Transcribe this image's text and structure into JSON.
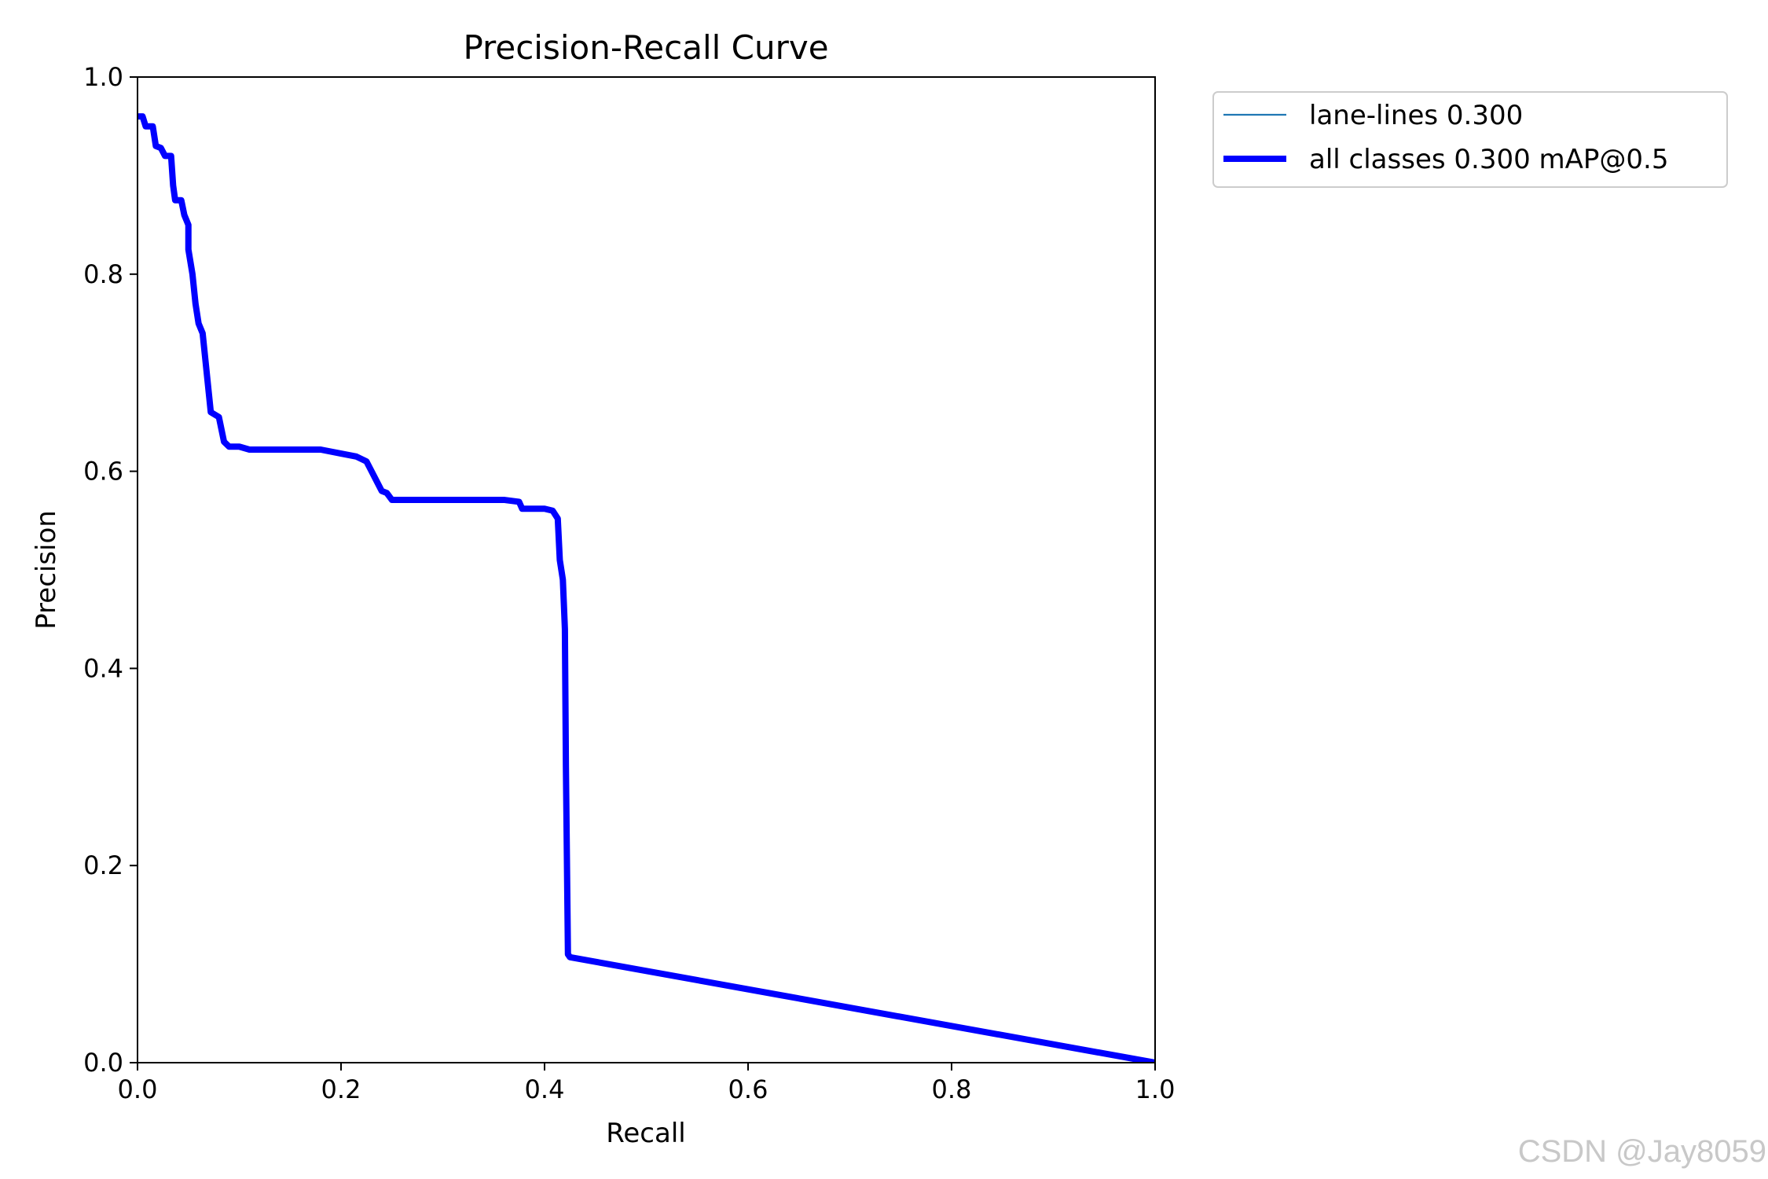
{
  "watermark": "CSDN @Jay8059",
  "chart_data": {
    "type": "line",
    "title": "Precision-Recall Curve",
    "xlabel": "Recall",
    "ylabel": "Precision",
    "xlim": [
      0,
      1
    ],
    "ylim": [
      0,
      1
    ],
    "xticks": [
      "0.0",
      "0.2",
      "0.4",
      "0.6",
      "0.8",
      "1.0"
    ],
    "yticks": [
      "0.0",
      "0.2",
      "0.4",
      "0.6",
      "0.8",
      "1.0"
    ],
    "grid": false,
    "legend_position": "outside-top-right",
    "series": [
      {
        "name": "lane-lines 0.300",
        "color": "#1f77b4",
        "line_style": "thin",
        "points": [
          [
            0.0,
            0.96
          ],
          [
            0.005,
            0.96
          ],
          [
            0.008,
            0.95
          ],
          [
            0.015,
            0.95
          ],
          [
            0.018,
            0.93
          ],
          [
            0.023,
            0.928
          ],
          [
            0.027,
            0.92
          ],
          [
            0.033,
            0.92
          ],
          [
            0.035,
            0.89
          ],
          [
            0.037,
            0.875
          ],
          [
            0.043,
            0.875
          ],
          [
            0.046,
            0.86
          ],
          [
            0.05,
            0.85
          ],
          [
            0.05,
            0.825
          ],
          [
            0.054,
            0.8
          ],
          [
            0.057,
            0.77
          ],
          [
            0.06,
            0.75
          ],
          [
            0.064,
            0.74
          ],
          [
            0.068,
            0.7
          ],
          [
            0.07,
            0.68
          ],
          [
            0.072,
            0.66
          ],
          [
            0.08,
            0.655
          ],
          [
            0.085,
            0.63
          ],
          [
            0.09,
            0.625
          ],
          [
            0.1,
            0.625
          ],
          [
            0.11,
            0.622
          ],
          [
            0.18,
            0.622
          ],
          [
            0.2,
            0.618
          ],
          [
            0.215,
            0.615
          ],
          [
            0.225,
            0.61
          ],
          [
            0.23,
            0.6
          ],
          [
            0.235,
            0.59
          ],
          [
            0.24,
            0.58
          ],
          [
            0.245,
            0.578
          ],
          [
            0.25,
            0.571
          ],
          [
            0.36,
            0.571
          ],
          [
            0.375,
            0.569
          ],
          [
            0.378,
            0.562
          ],
          [
            0.4,
            0.562
          ],
          [
            0.408,
            0.56
          ],
          [
            0.413,
            0.552
          ],
          [
            0.415,
            0.51
          ],
          [
            0.418,
            0.49
          ],
          [
            0.42,
            0.44
          ],
          [
            0.421,
            0.3
          ],
          [
            0.423,
            0.11
          ],
          [
            0.425,
            0.107
          ],
          [
            1.0,
            0.0
          ]
        ]
      },
      {
        "name": "all classes 0.300 mAP@0.5",
        "color": "#0000ff",
        "line_style": "thick",
        "points": [
          [
            0.0,
            0.96
          ],
          [
            0.005,
            0.96
          ],
          [
            0.008,
            0.95
          ],
          [
            0.015,
            0.95
          ],
          [
            0.018,
            0.93
          ],
          [
            0.023,
            0.928
          ],
          [
            0.027,
            0.92
          ],
          [
            0.033,
            0.92
          ],
          [
            0.035,
            0.89
          ],
          [
            0.037,
            0.875
          ],
          [
            0.043,
            0.875
          ],
          [
            0.046,
            0.86
          ],
          [
            0.05,
            0.85
          ],
          [
            0.05,
            0.825
          ],
          [
            0.054,
            0.8
          ],
          [
            0.057,
            0.77
          ],
          [
            0.06,
            0.75
          ],
          [
            0.064,
            0.74
          ],
          [
            0.068,
            0.7
          ],
          [
            0.07,
            0.68
          ],
          [
            0.072,
            0.66
          ],
          [
            0.08,
            0.655
          ],
          [
            0.085,
            0.63
          ],
          [
            0.09,
            0.625
          ],
          [
            0.1,
            0.625
          ],
          [
            0.11,
            0.622
          ],
          [
            0.18,
            0.622
          ],
          [
            0.2,
            0.618
          ],
          [
            0.215,
            0.615
          ],
          [
            0.225,
            0.61
          ],
          [
            0.23,
            0.6
          ],
          [
            0.235,
            0.59
          ],
          [
            0.24,
            0.58
          ],
          [
            0.245,
            0.578
          ],
          [
            0.25,
            0.571
          ],
          [
            0.36,
            0.571
          ],
          [
            0.375,
            0.569
          ],
          [
            0.378,
            0.562
          ],
          [
            0.4,
            0.562
          ],
          [
            0.408,
            0.56
          ],
          [
            0.413,
            0.552
          ],
          [
            0.415,
            0.51
          ],
          [
            0.418,
            0.49
          ],
          [
            0.42,
            0.44
          ],
          [
            0.421,
            0.3
          ],
          [
            0.423,
            0.11
          ],
          [
            0.425,
            0.107
          ],
          [
            1.0,
            0.0
          ]
        ]
      }
    ]
  }
}
